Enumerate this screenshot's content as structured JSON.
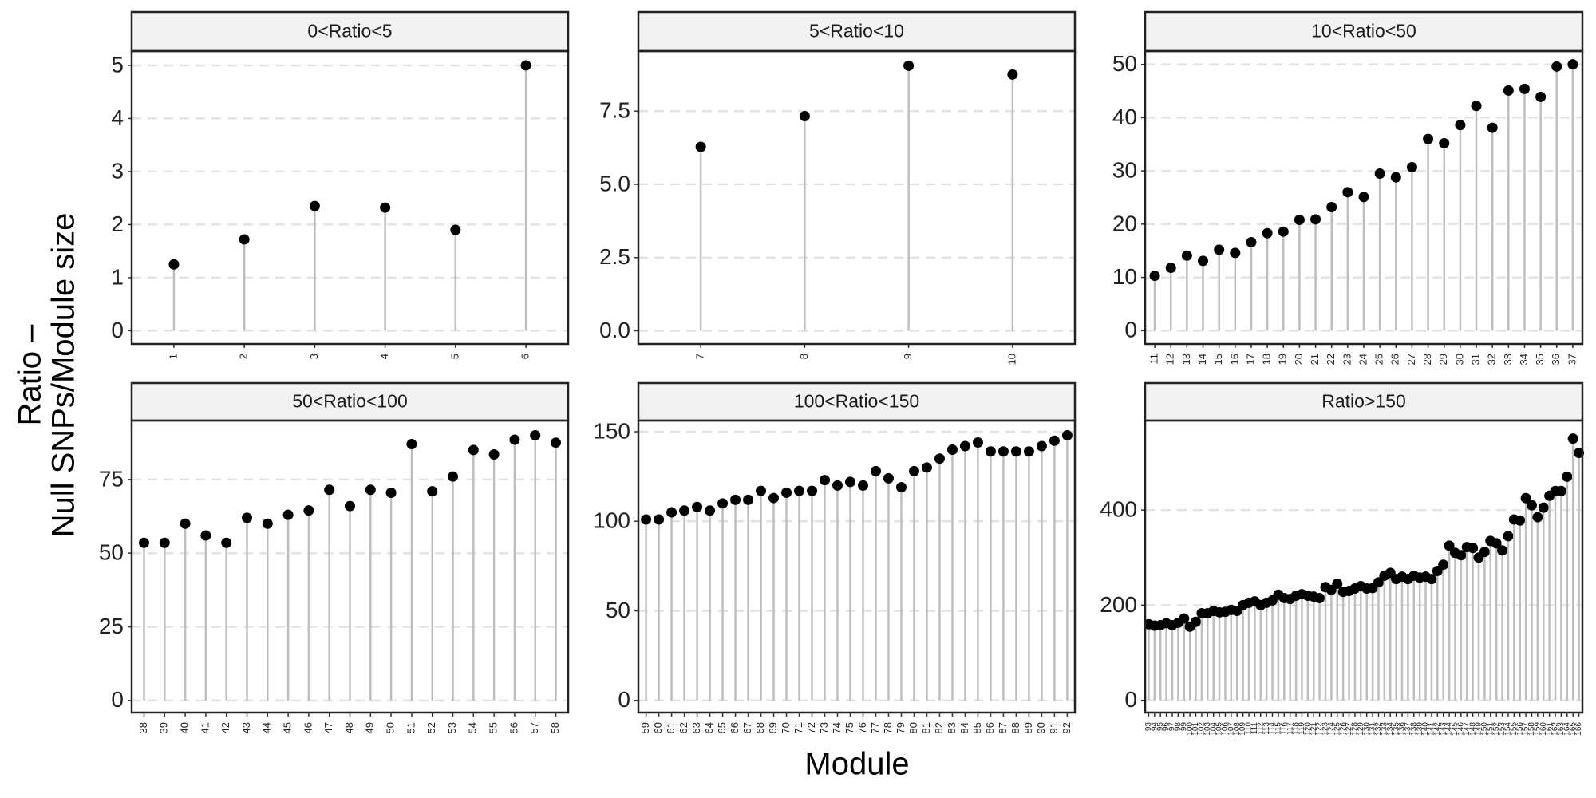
{
  "y_label": [
    "Ratio –",
    "Null SNPs/Module size"
  ],
  "x_label": "Module",
  "chart_data": [
    {
      "type": "lollipop",
      "title": "0<Ratio<5",
      "categories": [
        "1",
        "2",
        "3",
        "4",
        "5",
        "6"
      ],
      "values": [
        1.25,
        1.72,
        2.35,
        2.32,
        1.9,
        5.0
      ],
      "ylim": [
        -0.25,
        5.27
      ],
      "yticks": [
        0,
        1,
        2,
        3,
        4,
        5
      ],
      "grid": true,
      "color": "#000000",
      "stem_color": "#bebebe"
    },
    {
      "type": "lollipop",
      "title": "5<Ratio<10",
      "categories": [
        "7",
        "8",
        "9",
        "10"
      ],
      "values": [
        6.28,
        7.33,
        9.05,
        8.75
      ],
      "ylim": [
        -0.45,
        9.55
      ],
      "yticks": [
        {
          "value": 0,
          "label": "0.0"
        },
        2.5,
        {
          "value": 5,
          "label": "5.0"
        },
        7.5
      ],
      "grid": true,
      "color": "#000000",
      "stem_color": "#bebebe"
    },
    {
      "type": "lollipop",
      "title": "10<Ratio<50",
      "categories": [
        "11",
        "12",
        "13",
        "14",
        "15",
        "16",
        "17",
        "18",
        "19",
        "20",
        "21",
        "22",
        "23",
        "24",
        "25",
        "26",
        "27",
        "28",
        "29",
        "30",
        "31",
        "32",
        "33",
        "34",
        "35",
        "36",
        "37"
      ],
      "values": [
        10.3,
        11.8,
        14.1,
        13.1,
        15.2,
        14.6,
        16.6,
        18.3,
        18.6,
        20.8,
        20.9,
        23.2,
        26.0,
        25.1,
        29.5,
        28.8,
        30.7,
        36.0,
        35.2,
        38.6,
        42.2,
        38.1,
        45.1,
        45.4,
        43.9,
        49.6,
        50.0
      ],
      "ylim": [
        -2.5,
        52.5
      ],
      "yticks": [
        0,
        10,
        20,
        30,
        40,
        50
      ],
      "grid": true,
      "color": "#000000",
      "stem_color": "#bebebe"
    },
    {
      "type": "lollipop",
      "title": "50<Ratio<100",
      "categories": [
        "38",
        "39",
        "40",
        "41",
        "42",
        "43",
        "44",
        "45",
        "46",
        "47",
        "48",
        "49",
        "50",
        "51",
        "52",
        "53",
        "54",
        "55",
        "56",
        "57",
        "58"
      ],
      "values": [
        53.5,
        53.5,
        60,
        56,
        53.5,
        62,
        60,
        63,
        64.5,
        71.5,
        66,
        71.5,
        70.5,
        87,
        71,
        76,
        85,
        83.5,
        88.5,
        90,
        87.5
      ],
      "ylim": [
        -4.1,
        95
      ],
      "yticks": [
        0,
        25,
        50,
        75
      ],
      "grid": true,
      "color": "#000000",
      "stem_color": "#bebebe"
    },
    {
      "type": "lollipop",
      "title": "100<Ratio<150",
      "categories": [
        "59",
        "60",
        "61",
        "62",
        "63",
        "64",
        "65",
        "66",
        "67",
        "68",
        "69",
        "70",
        "71",
        "72",
        "73",
        "74",
        "75",
        "76",
        "77",
        "78",
        "79",
        "80",
        "81",
        "82",
        "83",
        "84",
        "85",
        "86",
        "87",
        "88",
        "89",
        "90",
        "91",
        "92"
      ],
      "values": [
        101,
        101,
        105,
        106,
        108,
        106,
        110,
        112,
        112,
        117,
        113,
        116,
        117,
        117,
        123,
        120,
        122,
        120,
        128,
        124,
        119,
        128,
        130,
        135,
        140,
        142,
        144,
        139,
        139,
        139,
        139,
        142,
        145,
        148
      ],
      "ylim": [
        -6.8,
        156.25
      ],
      "yticks": [
        0,
        50,
        100,
        150
      ],
      "grid": true,
      "color": "#000000",
      "stem_color": "#bebebe"
    },
    {
      "type": "lollipop",
      "title": "Ratio>150",
      "categories": [
        "93",
        "94",
        "95",
        "96",
        "97",
        "98",
        "99",
        "100",
        "101",
        "102",
        "103",
        "104",
        "105",
        "106",
        "107",
        "108",
        "109",
        "110",
        "111",
        "112",
        "113",
        "114",
        "115",
        "116",
        "117",
        "118",
        "119",
        "120",
        "121",
        "122",
        "123",
        "124",
        "125",
        "126",
        "127",
        "128",
        "129",
        "130",
        "131",
        "132",
        "133",
        "134",
        "135",
        "136",
        "137",
        "138",
        "139",
        "140",
        "141",
        "142",
        "143",
        "144",
        "145",
        "146",
        "147",
        "148",
        "149",
        "150",
        "151",
        "152",
        "153",
        "154",
        "155",
        "156",
        "157",
        "158",
        "159",
        "160",
        "161",
        "162",
        "163",
        "164",
        "165",
        "166"
      ],
      "values": [
        160,
        157,
        158,
        162,
        158,
        163,
        172,
        155,
        165,
        183,
        183,
        188,
        185,
        186,
        190,
        188,
        200,
        205,
        208,
        200,
        205,
        210,
        222,
        215,
        213,
        220,
        223,
        220,
        218,
        215,
        238,
        232,
        245,
        228,
        230,
        235,
        240,
        235,
        236,
        248,
        262,
        268,
        255,
        260,
        255,
        262,
        258,
        260,
        255,
        272,
        285,
        325,
        310,
        305,
        322,
        320,
        300,
        312,
        335,
        330,
        315,
        345,
        380,
        378,
        425,
        410,
        385,
        405,
        430,
        440,
        440,
        470,
        550,
        520
      ],
      "ylim": [
        -25.7,
        588
      ],
      "yticks": [
        0,
        200,
        400
      ],
      "grid": true,
      "color": "#000000",
      "stem_color": "#bebebe"
    }
  ]
}
